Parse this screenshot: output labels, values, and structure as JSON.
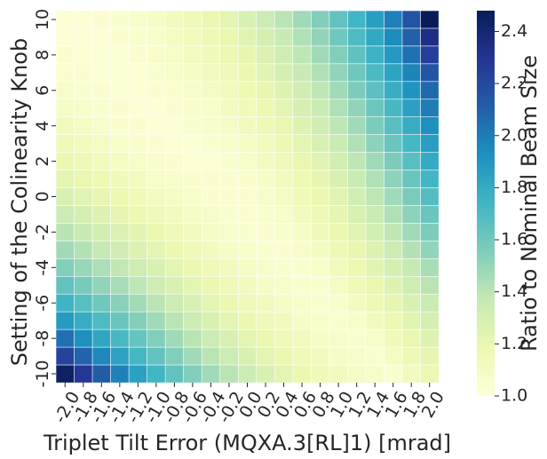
{
  "chart_data": {
    "type": "heatmap",
    "xlabel": "Triplet Tilt Error (MQXA.3[RL]1) [mrad]",
    "ylabel": "Setting of the Colinearity Knob",
    "colorbar_label": "Ratio to Nominal Beam Size",
    "colormap": "YlGnBu",
    "colormap_stops": [
      "#ffffd9",
      "#edf8b1",
      "#c7e9b4",
      "#7fcdbb",
      "#41b6c4",
      "#1d91c0",
      "#225ea8",
      "#253494",
      "#081d58"
    ],
    "x_values": [
      -2.0,
      -1.8,
      -1.6,
      -1.4,
      -1.2,
      -1.0,
      -0.8,
      -0.6,
      -0.4,
      -0.2,
      0.0,
      0.2,
      0.4,
      0.6,
      0.8,
      1.0,
      1.2,
      1.4,
      1.6,
      1.8,
      2.0
    ],
    "y_values": [
      10,
      9,
      8,
      7,
      6,
      5,
      4,
      3,
      2,
      1,
      0,
      -1,
      -2,
      -3,
      -4,
      -5,
      -6,
      -7,
      -8,
      -9,
      -10
    ],
    "x_tick_labels": [
      "-2.0",
      "-1.8",
      "-1.6",
      "-1.4",
      "-1.2",
      "-1.0",
      "-0.8",
      "-0.6",
      "-0.4",
      "-0.2",
      "0.0",
      "0.2",
      "0.4",
      "0.6",
      "0.8",
      "1.0",
      "1.2",
      "1.4",
      "1.6",
      "1.8",
      "2.0"
    ],
    "y_tick_labels": [
      "10",
      "8",
      "6",
      "4",
      "2",
      "0",
      "-2",
      "-4",
      "-6",
      "-8",
      "-10"
    ],
    "colorbar_ticks": [
      "1.0",
      "1.2",
      "1.4",
      "1.6",
      "1.8",
      "2.0",
      "2.2",
      "2.4"
    ],
    "colorbar_tick_values": [
      1.0,
      1.2,
      1.4,
      1.6,
      1.8,
      2.0,
      2.2,
      2.4
    ],
    "vmin": 1.0,
    "vmax": 2.48,
    "z": [
      [
        1.03,
        1.03,
        1.04,
        1.05,
        1.07,
        1.09,
        1.12,
        1.15,
        1.19,
        1.23,
        1.28,
        1.34,
        1.4,
        1.47,
        1.55,
        1.64,
        1.74,
        1.86,
        1.99,
        2.16,
        2.48
      ],
      [
        1.03,
        1.03,
        1.03,
        1.04,
        1.05,
        1.07,
        1.1,
        1.13,
        1.16,
        1.2,
        1.25,
        1.3,
        1.36,
        1.43,
        1.51,
        1.6,
        1.7,
        1.81,
        1.94,
        2.1,
        2.34
      ],
      [
        1.04,
        1.03,
        1.03,
        1.03,
        1.04,
        1.06,
        1.08,
        1.11,
        1.14,
        1.18,
        1.22,
        1.27,
        1.33,
        1.39,
        1.47,
        1.55,
        1.65,
        1.76,
        1.89,
        2.04,
        2.25
      ],
      [
        1.05,
        1.04,
        1.03,
        1.03,
        1.03,
        1.05,
        1.07,
        1.09,
        1.12,
        1.15,
        1.19,
        1.24,
        1.3,
        1.36,
        1.43,
        1.51,
        1.6,
        1.71,
        1.83,
        1.97,
        2.15
      ],
      [
        1.07,
        1.05,
        1.04,
        1.03,
        1.03,
        1.04,
        1.05,
        1.07,
        1.1,
        1.13,
        1.17,
        1.21,
        1.26,
        1.32,
        1.39,
        1.47,
        1.56,
        1.66,
        1.78,
        1.91,
        2.07
      ],
      [
        1.09,
        1.07,
        1.05,
        1.04,
        1.03,
        1.03,
        1.04,
        1.06,
        1.08,
        1.11,
        1.14,
        1.18,
        1.23,
        1.29,
        1.35,
        1.43,
        1.51,
        1.61,
        1.72,
        1.85,
        2.0
      ],
      [
        1.12,
        1.1,
        1.07,
        1.05,
        1.04,
        1.03,
        1.03,
        1.05,
        1.07,
        1.09,
        1.12,
        1.16,
        1.2,
        1.26,
        1.32,
        1.39,
        1.47,
        1.56,
        1.67,
        1.79,
        1.93
      ],
      [
        1.15,
        1.13,
        1.1,
        1.08,
        1.06,
        1.04,
        1.03,
        1.03,
        1.05,
        1.07,
        1.1,
        1.13,
        1.18,
        1.23,
        1.28,
        1.35,
        1.43,
        1.52,
        1.62,
        1.73,
        1.86
      ],
      [
        1.19,
        1.16,
        1.13,
        1.1,
        1.08,
        1.06,
        1.04,
        1.03,
        1.03,
        1.05,
        1.08,
        1.11,
        1.15,
        1.2,
        1.25,
        1.31,
        1.39,
        1.47,
        1.56,
        1.67,
        1.8
      ],
      [
        1.23,
        1.2,
        1.17,
        1.14,
        1.11,
        1.08,
        1.06,
        1.05,
        1.04,
        1.04,
        1.06,
        1.09,
        1.12,
        1.17,
        1.22,
        1.28,
        1.35,
        1.43,
        1.52,
        1.62,
        1.74
      ],
      [
        1.28,
        1.25,
        1.21,
        1.18,
        1.14,
        1.11,
        1.09,
        1.07,
        1.05,
        1.04,
        1.04,
        1.07,
        1.1,
        1.14,
        1.19,
        1.25,
        1.31,
        1.39,
        1.47,
        1.57,
        1.68
      ],
      [
        1.34,
        1.3,
        1.26,
        1.22,
        1.18,
        1.15,
        1.12,
        1.09,
        1.07,
        1.05,
        1.04,
        1.05,
        1.08,
        1.12,
        1.16,
        1.22,
        1.28,
        1.35,
        1.43,
        1.52,
        1.62
      ],
      [
        1.4,
        1.36,
        1.31,
        1.27,
        1.23,
        1.19,
        1.15,
        1.12,
        1.09,
        1.07,
        1.05,
        1.04,
        1.06,
        1.09,
        1.14,
        1.19,
        1.25,
        1.31,
        1.38,
        1.47,
        1.56
      ],
      [
        1.47,
        1.42,
        1.37,
        1.32,
        1.27,
        1.23,
        1.19,
        1.15,
        1.12,
        1.09,
        1.07,
        1.05,
        1.04,
        1.07,
        1.11,
        1.16,
        1.21,
        1.27,
        1.34,
        1.42,
        1.51
      ],
      [
        1.55,
        1.49,
        1.44,
        1.38,
        1.33,
        1.28,
        1.23,
        1.19,
        1.15,
        1.12,
        1.09,
        1.07,
        1.05,
        1.05,
        1.08,
        1.13,
        1.18,
        1.24,
        1.3,
        1.37,
        1.45
      ],
      [
        1.64,
        1.58,
        1.51,
        1.45,
        1.39,
        1.33,
        1.28,
        1.23,
        1.19,
        1.15,
        1.12,
        1.09,
        1.07,
        1.05,
        1.05,
        1.1,
        1.15,
        1.2,
        1.26,
        1.33,
        1.4
      ],
      [
        1.75,
        1.67,
        1.6,
        1.53,
        1.46,
        1.4,
        1.34,
        1.28,
        1.23,
        1.19,
        1.15,
        1.12,
        1.09,
        1.07,
        1.05,
        1.06,
        1.11,
        1.16,
        1.22,
        1.28,
        1.35
      ],
      [
        1.88,
        1.79,
        1.7,
        1.62,
        1.54,
        1.47,
        1.4,
        1.34,
        1.28,
        1.23,
        1.19,
        1.15,
        1.12,
        1.09,
        1.07,
        1.05,
        1.07,
        1.12,
        1.18,
        1.24,
        1.3
      ],
      [
        2.04,
        1.93,
        1.82,
        1.72,
        1.63,
        1.55,
        1.47,
        1.4,
        1.34,
        1.28,
        1.23,
        1.19,
        1.15,
        1.12,
        1.09,
        1.07,
        1.05,
        1.08,
        1.14,
        1.2,
        1.26
      ],
      [
        2.23,
        2.09,
        1.96,
        1.84,
        1.73,
        1.64,
        1.55,
        1.47,
        1.4,
        1.34,
        1.28,
        1.23,
        1.19,
        1.15,
        1.12,
        1.09,
        1.07,
        1.05,
        1.1,
        1.16,
        1.22
      ],
      [
        2.45,
        2.28,
        2.12,
        1.98,
        1.85,
        1.74,
        1.64,
        1.55,
        1.47,
        1.4,
        1.34,
        1.28,
        1.23,
        1.19,
        1.15,
        1.12,
        1.09,
        1.07,
        1.05,
        1.12,
        1.18
      ]
    ]
  }
}
